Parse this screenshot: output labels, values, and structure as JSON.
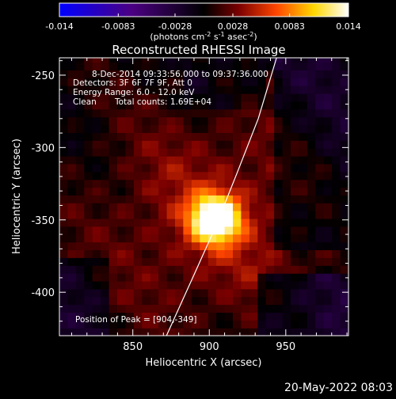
{
  "colorbar": {
    "ticks": [
      "-0.014",
      "-0.0083",
      "-0.0028",
      "0.0028",
      "0.0083",
      "0.014"
    ],
    "tick_values": [
      -0.014,
      -0.0083,
      -0.0028,
      0.0028,
      0.0083,
      0.014
    ],
    "unit_parts": [
      "(photons cm",
      "-2",
      " s",
      "-1",
      " asec",
      "-2",
      ")"
    ],
    "colors": [
      "#0000ff",
      "#4b0082",
      "#000000",
      "#7a0000",
      "#ff4500",
      "#ffd700",
      "#ffffff"
    ]
  },
  "plot": {
    "title": "Reconstructed RHESSI Image",
    "xlabel": "Heliocentric X (arcsec)",
    "ylabel": "Heliocentric Y (arcsec)",
    "xticks": [
      "850",
      "900",
      "950"
    ],
    "yticks": [
      "-250",
      "-300",
      "-350",
      "-400"
    ],
    "info": {
      "time": "8-Dec-2014 09:33:56.000 to 09:37:36.000",
      "detectors": "Detectors: 3F 6F 7F 9F, Att 0",
      "energy": "Energy Range: 6.0 - 12.0 keV",
      "clean": "Clean",
      "counts": "Total counts: 1.69E+04"
    },
    "peak": "Position of Peak = [904,-349]"
  },
  "timestamp": "20-May-2022 08:03",
  "chart_data": {
    "type": "heatmap",
    "title": "Reconstructed RHESSI Image",
    "xlabel": "Heliocentric X (arcsec)",
    "ylabel": "Heliocentric Y (arcsec)",
    "xlim": [
      802,
      991
    ],
    "ylim": [
      -430,
      -238
    ],
    "xticks": [
      850,
      900,
      950
    ],
    "yticks": [
      -250,
      -300,
      -350,
      -400
    ],
    "color_scale": {
      "min": -0.014,
      "max": 0.014,
      "unit": "photons cm^-2 s^-1 asec^-2"
    },
    "peak": {
      "x": 904,
      "y": -349
    },
    "limb_curve": [
      [
        872,
        -430
      ],
      [
        890,
        -388
      ],
      [
        904,
        -355
      ],
      [
        918,
        -318
      ],
      [
        932,
        -280
      ],
      [
        944,
        -238
      ]
    ],
    "grid": false,
    "legend": "none"
  }
}
